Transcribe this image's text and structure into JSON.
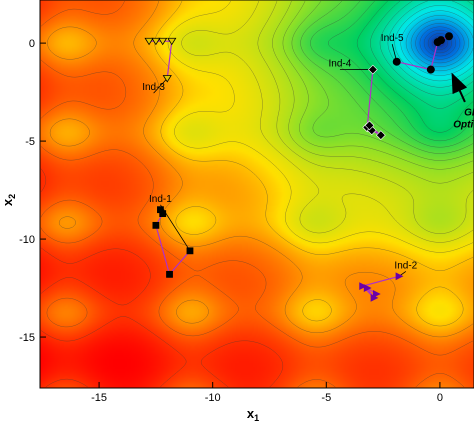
{
  "chart_data": {
    "type": "contour",
    "xlabel": "x",
    "xlabel_sub": "1",
    "ylabel": "x",
    "ylabel_sub": "2",
    "xlim": [
      -17.6,
      1.5
    ],
    "ylim": [
      -17.6,
      2.2
    ],
    "x_ticks": [
      -15,
      -10,
      -5,
      0
    ],
    "y_ticks": [
      0,
      -5,
      -10,
      -15
    ],
    "x_tick_labels": [
      "-15",
      "-10",
      "-5",
      "0"
    ],
    "y_tick_labels": [
      "0",
      "-5",
      "-10",
      "-15"
    ],
    "colormap": [
      "#ff0000",
      "#ffe000",
      "#8ce028",
      "#00d060",
      "#00e8e8",
      "#0070e0",
      "#1030a0"
    ],
    "global_optimum": {
      "label_line1": "Global",
      "label_line2": "Optimmum",
      "point": [
        0,
        0
      ]
    },
    "individuals": [
      {
        "name": "Ind-1",
        "label_at": [
          -12.3,
          -8.1
        ],
        "path": [
          [
            -11.0,
            -10.6
          ],
          [
            -11.9,
            -11.8
          ],
          [
            -12.5,
            -9.3
          ],
          [
            -12.2,
            -8.7
          ],
          [
            -12.3,
            -8.5
          ]
        ],
        "marker": "square",
        "color": "#000000"
      },
      {
        "name": "Ind-2",
        "label_at": [
          -1.5,
          -11.5
        ],
        "path": [
          [
            -1.8,
            -11.9
          ],
          [
            -3.4,
            -12.4
          ],
          [
            -2.9,
            -13.0
          ],
          [
            -3.2,
            -12.5
          ],
          [
            -2.8,
            -12.8
          ]
        ],
        "marker": "triangle-right",
        "color": "#6a00a8"
      },
      {
        "name": "Ind-3",
        "label_at": [
          -12.6,
          -2.4
        ],
        "path": [
          [
            -12.0,
            -1.8
          ],
          [
            -11.8,
            0.1
          ],
          [
            -12.2,
            0.1
          ],
          [
            -12.5,
            0.1
          ],
          [
            -12.8,
            0.1
          ]
        ],
        "marker": "triangle-down",
        "color": "#e0c800"
      },
      {
        "name": "Ind-4",
        "label_at": [
          -4.4,
          -1.2
        ],
        "path": [
          [
            -2.95,
            -1.35
          ],
          [
            -3.2,
            -4.3
          ],
          [
            -3.0,
            -4.45
          ],
          [
            -2.6,
            -4.7
          ],
          [
            -3.1,
            -4.2
          ]
        ],
        "marker": "diamond",
        "color": "#000000"
      },
      {
        "name": "Ind-5",
        "label_at": [
          -2.1,
          0.1
        ],
        "path": [
          [
            -1.9,
            -0.95
          ],
          [
            -0.4,
            -1.35
          ],
          [
            -0.1,
            0.05
          ],
          [
            0.05,
            0.15
          ],
          [
            0.4,
            0.35
          ]
        ],
        "marker": "circle",
        "color": "#000000"
      }
    ]
  }
}
